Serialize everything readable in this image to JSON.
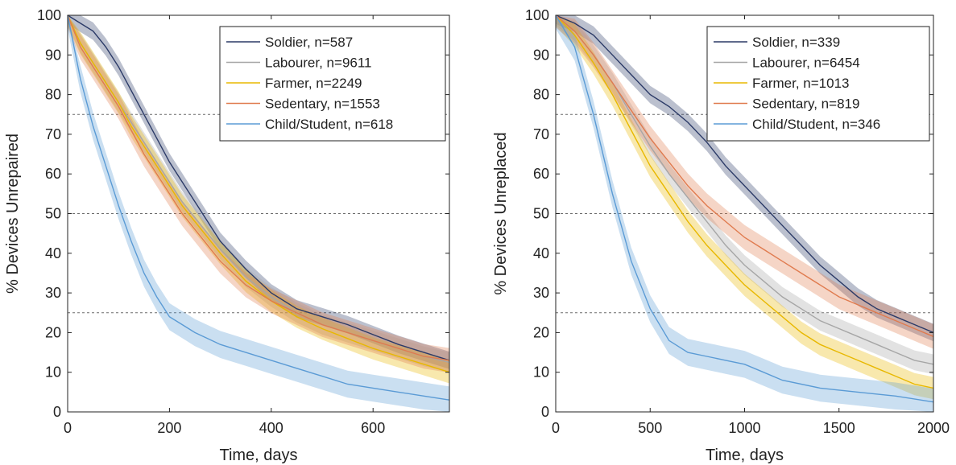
{
  "chart_data": [
    {
      "type": "line",
      "xlabel": "Time, days",
      "ylabel": "% Devices Unrepaired",
      "xlim": [
        0,
        750
      ],
      "ylim": [
        0,
        100
      ],
      "xticks": [
        "0",
        "200",
        "400",
        "600"
      ],
      "yticks": [
        "0",
        "10",
        "20",
        "30",
        "40",
        "50",
        "60",
        "70",
        "80",
        "90",
        "100"
      ],
      "reference_lines_y": [
        75,
        50,
        25
      ],
      "legend_position": "top-right",
      "series": [
        {
          "name": "Soldier, n=587",
          "color": "#2b3a67",
          "x": [
            0,
            25,
            50,
            75,
            100,
            125,
            150,
            175,
            200,
            225,
            250,
            275,
            300,
            350,
            400,
            450,
            500,
            550,
            600,
            650,
            700,
            750
          ],
          "y": [
            100,
            98,
            96,
            92,
            87,
            81,
            75,
            69,
            63,
            58,
            53,
            48,
            43,
            36,
            30,
            26,
            24,
            22,
            19.5,
            17,
            15,
            13
          ]
        },
        {
          "name": "Labourer, n=9611",
          "color": "#a6a6a6",
          "x": [
            0,
            25,
            50,
            75,
            100,
            125,
            150,
            175,
            200,
            225,
            250,
            275,
            300,
            350,
            400,
            450,
            500,
            550,
            600,
            650,
            700,
            750
          ],
          "y": [
            100,
            93,
            88,
            83,
            78,
            73,
            68,
            63,
            58,
            53,
            49,
            45,
            41,
            34,
            29,
            25,
            22,
            20,
            18,
            16,
            14,
            12.5
          ]
        },
        {
          "name": "Farmer, n=2249",
          "color": "#e8b800",
          "x": [
            0,
            25,
            50,
            75,
            100,
            125,
            150,
            175,
            200,
            225,
            250,
            275,
            300,
            350,
            400,
            450,
            500,
            550,
            600,
            650,
            700,
            750
          ],
          "y": [
            100,
            93,
            88,
            83,
            78,
            72,
            67,
            62,
            57,
            52,
            48,
            44,
            40,
            33,
            28,
            24,
            21,
            18.5,
            16,
            14,
            12,
            10
          ]
        },
        {
          "name": "Sedentary, n=1553",
          "color": "#e07b4f",
          "x": [
            0,
            25,
            50,
            75,
            100,
            125,
            150,
            175,
            200,
            225,
            250,
            275,
            300,
            350,
            400,
            450,
            500,
            550,
            600,
            650,
            700,
            750
          ],
          "y": [
            100,
            92,
            87,
            82,
            77,
            71,
            65,
            60,
            55,
            50,
            46,
            42,
            38,
            32,
            28,
            25,
            22,
            20,
            18,
            16,
            14,
            13
          ]
        },
        {
          "name": "Child/Student, n=618",
          "color": "#5b9bd5",
          "x": [
            0,
            25,
            50,
            75,
            100,
            125,
            150,
            175,
            200,
            225,
            250,
            300,
            350,
            400,
            450,
            500,
            550,
            600,
            650,
            700,
            750
          ],
          "y": [
            100,
            84,
            72,
            62,
            52,
            43,
            35,
            29,
            24,
            22,
            20,
            17,
            15,
            13,
            11,
            9,
            7,
            6,
            5,
            4,
            3
          ]
        }
      ]
    },
    {
      "type": "line",
      "xlabel": "Time, days",
      "ylabel": "% Devices Unreplaced",
      "xlim": [
        0,
        2000
      ],
      "ylim": [
        0,
        100
      ],
      "xticks": [
        "0",
        "500",
        "1000",
        "1500",
        "2000"
      ],
      "yticks": [
        "0",
        "10",
        "20",
        "30",
        "40",
        "50",
        "60",
        "70",
        "80",
        "90",
        "100"
      ],
      "reference_lines_y": [
        75,
        50,
        25
      ],
      "legend_position": "top-right",
      "series": [
        {
          "name": "Soldier, n=339",
          "color": "#2b3a67",
          "x": [
            0,
            100,
            200,
            300,
            400,
            500,
            600,
            700,
            800,
            900,
            1000,
            1100,
            1200,
            1300,
            1400,
            1500,
            1600,
            1700,
            1800,
            1900,
            2000
          ],
          "y": [
            100,
            98,
            95,
            90,
            85,
            80,
            77,
            73,
            68,
            62,
            57,
            52,
            47,
            42,
            37,
            33,
            29,
            26,
            24,
            22,
            20
          ]
        },
        {
          "name": "Labourer, n=6454",
          "color": "#a6a6a6",
          "x": [
            0,
            100,
            200,
            300,
            400,
            500,
            600,
            700,
            800,
            900,
            1000,
            1100,
            1200,
            1300,
            1400,
            1500,
            1600,
            1700,
            1800,
            1900,
            2000
          ],
          "y": [
            100,
            96,
            90,
            83,
            75,
            67,
            60,
            54,
            48,
            42,
            37,
            33,
            29,
            26,
            23,
            21,
            19,
            17,
            15,
            13,
            12
          ]
        },
        {
          "name": "Farmer, n=1013",
          "color": "#e8b800",
          "x": [
            0,
            100,
            200,
            300,
            400,
            500,
            600,
            700,
            800,
            900,
            1000,
            1100,
            1200,
            1300,
            1400,
            1500,
            1600,
            1700,
            1800,
            1900,
            2000
          ],
          "y": [
            100,
            95,
            88,
            80,
            71,
            62,
            55,
            48,
            42,
            37,
            32,
            28,
            24,
            20,
            17,
            15,
            13,
            11,
            9,
            7,
            6
          ]
        },
        {
          "name": "Sedentary, n=819",
          "color": "#e07b4f",
          "x": [
            0,
            100,
            200,
            300,
            400,
            500,
            600,
            700,
            800,
            900,
            1000,
            1100,
            1200,
            1300,
            1400,
            1500,
            1600,
            1700,
            1800,
            1900,
            2000
          ],
          "y": [
            100,
            96,
            90,
            83,
            76,
            69,
            63,
            57,
            52,
            48,
            44,
            41,
            38,
            35,
            32,
            29,
            27,
            25,
            23,
            21,
            19
          ]
        },
        {
          "name": "Child/Student, n=346",
          "color": "#5b9bd5",
          "x": [
            0,
            100,
            200,
            300,
            400,
            500,
            600,
            700,
            800,
            900,
            1000,
            1100,
            1200,
            1400,
            1600,
            1800,
            2000
          ],
          "y": [
            100,
            92,
            75,
            55,
            38,
            26,
            18,
            15,
            14,
            13,
            12,
            10,
            8,
            6,
            5,
            4,
            2.5
          ]
        }
      ]
    }
  ]
}
